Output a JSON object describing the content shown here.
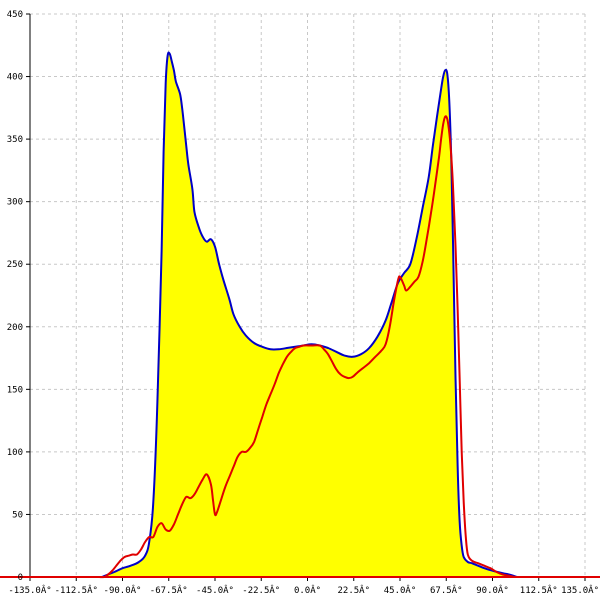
{
  "chart_data": {
    "type": "area",
    "title": "",
    "xlabel": "",
    "ylabel": "",
    "xlim": [
      -135,
      135
    ],
    "ylim": [
      0,
      450
    ],
    "grid": true,
    "legend": "none",
    "x_ticks": [
      {
        "value": -135,
        "label": "-135.0Â°"
      },
      {
        "value": -112.5,
        "label": "-112.5Â°"
      },
      {
        "value": -90,
        "label": "-90.0Â°"
      },
      {
        "value": -67.5,
        "label": "-67.5Â°"
      },
      {
        "value": -45,
        "label": "-45.0Â°"
      },
      {
        "value": -22.5,
        "label": "-22.5Â°"
      },
      {
        "value": 0,
        "label": "0.0Â°"
      },
      {
        "value": 22.5,
        "label": "22.5Â°"
      },
      {
        "value": 45,
        "label": "45.0Â°"
      },
      {
        "value": 67.5,
        "label": "67.5Â°"
      },
      {
        "value": 90,
        "label": "90.0Â°"
      },
      {
        "value": 112.5,
        "label": "112.5Â°"
      },
      {
        "value": 135,
        "label": "135.0Â°"
      }
    ],
    "y_ticks": [
      {
        "value": 0,
        "label": "0"
      },
      {
        "value": 50,
        "label": "50"
      },
      {
        "value": 100,
        "label": "100"
      },
      {
        "value": 150,
        "label": "150"
      },
      {
        "value": 200,
        "label": "200"
      },
      {
        "value": 250,
        "label": "250"
      },
      {
        "value": 300,
        "label": "300"
      },
      {
        "value": 350,
        "label": "350"
      },
      {
        "value": 400,
        "label": "400"
      },
      {
        "value": 450,
        "label": "450"
      }
    ],
    "series": [
      {
        "color": "#0000c8",
        "fill": "#ffff00",
        "points": [
          [
            -100,
            0
          ],
          [
            -97,
            2
          ],
          [
            -94,
            4
          ],
          [
            -90,
            7
          ],
          [
            -86,
            9
          ],
          [
            -82,
            12
          ],
          [
            -79,
            17
          ],
          [
            -77,
            28
          ],
          [
            -75,
            60
          ],
          [
            -73,
            140
          ],
          [
            -71,
            260
          ],
          [
            -70,
            340
          ],
          [
            -69,
            395
          ],
          [
            -68,
            417
          ],
          [
            -67,
            418
          ],
          [
            -66,
            412
          ],
          [
            -65,
            405
          ],
          [
            -64,
            396
          ],
          [
            -62,
            386
          ],
          [
            -61,
            375
          ],
          [
            -60,
            360
          ],
          [
            -59,
            345
          ],
          [
            -58,
            330
          ],
          [
            -56,
            310
          ],
          [
            -55,
            292
          ],
          [
            -53,
            280
          ],
          [
            -51,
            272
          ],
          [
            -49,
            268
          ],
          [
            -47,
            270
          ],
          [
            -45,
            264
          ],
          [
            -43,
            250
          ],
          [
            -41,
            238
          ],
          [
            -38,
            222
          ],
          [
            -36,
            210
          ],
          [
            -33,
            200
          ],
          [
            -30,
            193
          ],
          [
            -26,
            187
          ],
          [
            -22,
            184
          ],
          [
            -18,
            182
          ],
          [
            -14,
            182
          ],
          [
            -10,
            183
          ],
          [
            -6,
            184
          ],
          [
            -2,
            185
          ],
          [
            2,
            186
          ],
          [
            6,
            185
          ],
          [
            10,
            183
          ],
          [
            14,
            180
          ],
          [
            18,
            177
          ],
          [
            22,
            176
          ],
          [
            26,
            178
          ],
          [
            30,
            183
          ],
          [
            34,
            192
          ],
          [
            38,
            205
          ],
          [
            41,
            220
          ],
          [
            44,
            235
          ],
          [
            47,
            243
          ],
          [
            50,
            250
          ],
          [
            53,
            270
          ],
          [
            56,
            295
          ],
          [
            59,
            320
          ],
          [
            61,
            345
          ],
          [
            63,
            368
          ],
          [
            65,
            390
          ],
          [
            66,
            400
          ],
          [
            67,
            405
          ],
          [
            68,
            402
          ],
          [
            69,
            380
          ],
          [
            70,
            330
          ],
          [
            71,
            250
          ],
          [
            72,
            160
          ],
          [
            73,
            90
          ],
          [
            74,
            45
          ],
          [
            75,
            25
          ],
          [
            76,
            16
          ],
          [
            78,
            12
          ],
          [
            80,
            11
          ],
          [
            83,
            9
          ],
          [
            86,
            7
          ],
          [
            90,
            5
          ],
          [
            95,
            3
          ],
          [
            98,
            2
          ],
          [
            102,
            0
          ]
        ]
      },
      {
        "color": "#e00000",
        "fill": "none",
        "points": [
          [
            -102,
            0
          ],
          [
            -99,
            0
          ],
          [
            -97,
            2
          ],
          [
            -95,
            5
          ],
          [
            -93,
            9
          ],
          [
            -91,
            13
          ],
          [
            -89,
            16
          ],
          [
            -87,
            17
          ],
          [
            -85,
            18
          ],
          [
            -83,
            18
          ],
          [
            -81,
            22
          ],
          [
            -79,
            28
          ],
          [
            -77,
            32
          ],
          [
            -75,
            32
          ],
          [
            -73,
            40
          ],
          [
            -71,
            43
          ],
          [
            -69,
            38
          ],
          [
            -67,
            37
          ],
          [
            -65,
            42
          ],
          [
            -63,
            50
          ],
          [
            -61,
            58
          ],
          [
            -59,
            64
          ],
          [
            -57,
            63
          ],
          [
            -55,
            66
          ],
          [
            -53,
            72
          ],
          [
            -51,
            78
          ],
          [
            -49,
            82
          ],
          [
            -47,
            74
          ],
          [
            -46,
            62
          ],
          [
            -45,
            50
          ],
          [
            -44,
            52
          ],
          [
            -42,
            62
          ],
          [
            -40,
            72
          ],
          [
            -38,
            80
          ],
          [
            -36,
            88
          ],
          [
            -34,
            96
          ],
          [
            -32,
            100
          ],
          [
            -30,
            100
          ],
          [
            -28,
            103
          ],
          [
            -26,
            108
          ],
          [
            -24,
            118
          ],
          [
            -22,
            128
          ],
          [
            -20,
            138
          ],
          [
            -18,
            146
          ],
          [
            -16,
            154
          ],
          [
            -14,
            163
          ],
          [
            -12,
            170
          ],
          [
            -10,
            176
          ],
          [
            -8,
            180
          ],
          [
            -6,
            183
          ],
          [
            -4,
            184
          ],
          [
            -2,
            185
          ],
          [
            2,
            185
          ],
          [
            6,
            185
          ],
          [
            8,
            182
          ],
          [
            10,
            178
          ],
          [
            12,
            172
          ],
          [
            14,
            166
          ],
          [
            16,
            162
          ],
          [
            18,
            160
          ],
          [
            20,
            159
          ],
          [
            22,
            160
          ],
          [
            24,
            163
          ],
          [
            27,
            167
          ],
          [
            30,
            171
          ],
          [
            33,
            176
          ],
          [
            36,
            181
          ],
          [
            38,
            186
          ],
          [
            40,
            200
          ],
          [
            42,
            220
          ],
          [
            44,
            237
          ],
          [
            45,
            240
          ],
          [
            47,
            233
          ],
          [
            48,
            229
          ],
          [
            50,
            232
          ],
          [
            52,
            236
          ],
          [
            54,
            240
          ],
          [
            56,
            252
          ],
          [
            58,
            270
          ],
          [
            60,
            290
          ],
          [
            62,
            312
          ],
          [
            64,
            336
          ],
          [
            65,
            350
          ],
          [
            66,
            362
          ],
          [
            67,
            368
          ],
          [
            68,
            366
          ],
          [
            69,
            355
          ],
          [
            70,
            335
          ],
          [
            71,
            305
          ],
          [
            72,
            265
          ],
          [
            73,
            215
          ],
          [
            74,
            160
          ],
          [
            75,
            100
          ],
          [
            76,
            60
          ],
          [
            77,
            32
          ],
          [
            78,
            18
          ],
          [
            80,
            13
          ],
          [
            83,
            11
          ],
          [
            86,
            9
          ],
          [
            89,
            7
          ],
          [
            92,
            4
          ],
          [
            95,
            2
          ],
          [
            98,
            1
          ],
          [
            101,
            0
          ]
        ]
      }
    ]
  }
}
